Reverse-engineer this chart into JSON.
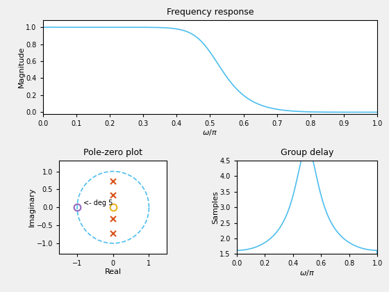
{
  "title_freq": "Frequency response",
  "title_pz": "Pole-zero plot",
  "title_gd": "Group delay",
  "xlabel_freq": "$\\omega/\\pi$",
  "ylabel_freq": "Magnitude",
  "xlabel_pz": "Real",
  "ylabel_pz": "Imaginary",
  "xlabel_gd": "$\\omega/\\pi$",
  "ylabel_gd": "Samples",
  "line_color": "#4DBEEE",
  "pole_color": "#D95319",
  "zero_color": "#EDB120",
  "zero_single_color": "#9467BD",
  "unit_circle_color": "#4DBEEE",
  "annotation_text": "<- deg 5",
  "filter_order": 5,
  "cutoff": 0.5,
  "background_color": "#F0F0F0"
}
